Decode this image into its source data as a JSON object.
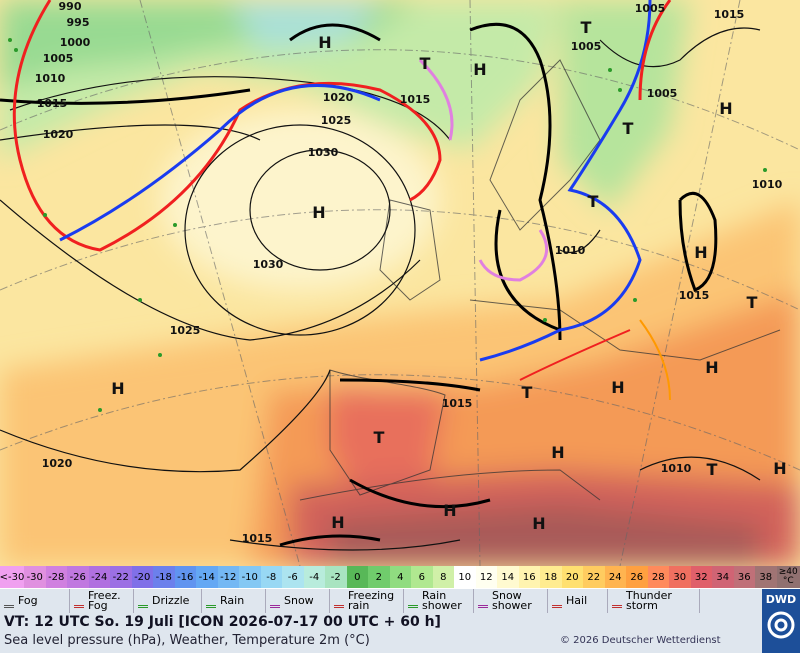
{
  "map": {
    "isobar_labels": [
      "990",
      "995",
      "1000",
      "1005",
      "1010",
      "1015",
      "1020",
      "1020",
      "1025",
      "1030",
      "1030",
      "1025",
      "1020",
      "1015",
      "1015",
      "1010",
      "1015",
      "1005",
      "1005",
      "1015",
      "1005",
      "1010",
      "1015",
      "1010"
    ],
    "pressure_centers": [
      "H",
      "H",
      "H",
      "H",
      "H",
      "H",
      "H",
      "H",
      "H",
      "H",
      "H",
      "H",
      "H",
      "T",
      "T",
      "T",
      "T",
      "T",
      "T",
      "T",
      "T"
    ]
  },
  "scale": {
    "low_label": "<-30",
    "values": [
      -30,
      -28,
      -26,
      -24,
      -22,
      -20,
      -18,
      -16,
      -14,
      -12,
      -10,
      -8,
      -6,
      -4,
      -2,
      0,
      2,
      4,
      6,
      8,
      10,
      12,
      14,
      16,
      18,
      20,
      22,
      24,
      26,
      28,
      30,
      32,
      34,
      36,
      38
    ],
    "high_label": "≥40 °C"
  },
  "legend": [
    "Fog",
    "Freez. Fog",
    "Drizzle",
    "Rain",
    "Snow",
    "Freezing rain",
    "Rain shower",
    "Snow shower",
    "Hail",
    "Thunder storm"
  ],
  "logo": "DWD",
  "footer": {
    "valid_time": "VT: 12 UTC So.  19 Juli [ICON 2026-07-17  00 UTC + 60 h]",
    "description": "Sea level pressure (hPa), Weather, Temperature 2m (°C)",
    "copyright": "© 2026 Deutscher Wetterdienst"
  }
}
